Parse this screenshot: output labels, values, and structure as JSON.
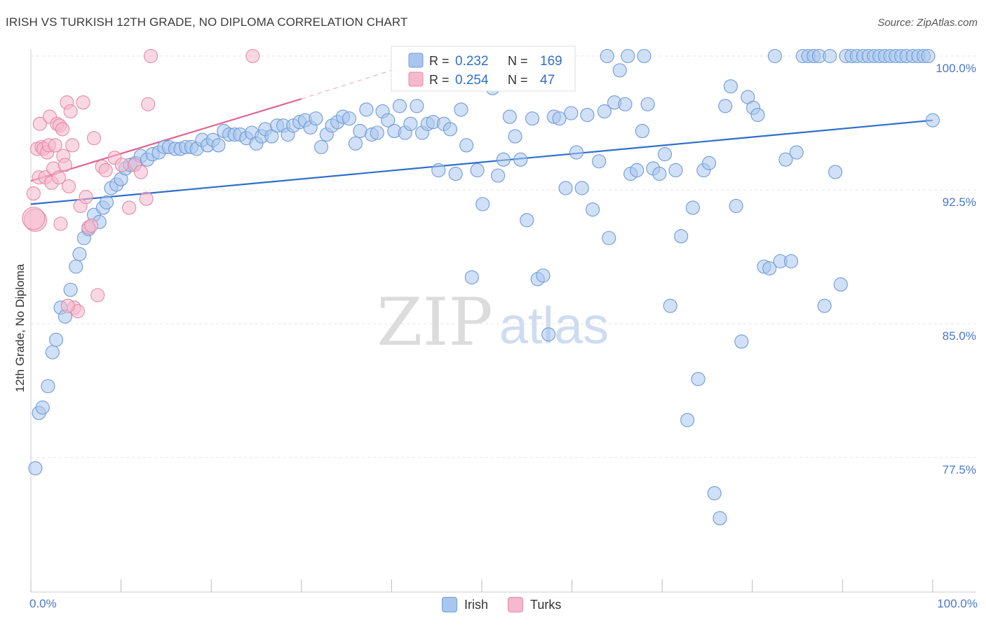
{
  "title": "IRISH VS TURKISH 12TH GRADE, NO DIPLOMA CORRELATION CHART",
  "source": "Source: ZipAtlas.com",
  "watermark": {
    "zip": "ZIP",
    "atlas": "atlas"
  },
  "chart_data": {
    "type": "scatter",
    "xlabel": "",
    "ylabel": "12th Grade, No Diploma",
    "xlim": [
      0,
      100
    ],
    "ylim": [
      70.5,
      101.5
    ],
    "x_tick_labels": {
      "left": "0.0%",
      "right": "100.0%"
    },
    "y_ticks": [
      {
        "value": 100.0,
        "label": "100.0%"
      },
      {
        "value": 92.5,
        "label": "92.5%"
      },
      {
        "value": 85.0,
        "label": "85.0%"
      },
      {
        "value": 77.5,
        "label": "77.5%"
      }
    ],
    "grid": true,
    "legend_stats": [
      {
        "series": "Irish",
        "r_label": "R =",
        "r": "0.232",
        "n_label": "N =",
        "n": "169",
        "color": "#a9c6ef"
      },
      {
        "series": "Turks",
        "r_label": "R =",
        "r": "0.254",
        "n_label": "N =",
        "n": "47",
        "color": "#f6b8cc"
      }
    ],
    "series": [
      {
        "name": "Irish",
        "color": "#a9c6ef",
        "stroke": "#6f9bd8",
        "line_color": "#2f6fca",
        "trend": {
          "x0": 0,
          "y0": 91.7,
          "x1": 100,
          "y1": 96.4
        },
        "points": [
          [
            0.5,
            76.9
          ],
          [
            0.9,
            80.0
          ],
          [
            1.3,
            80.3
          ],
          [
            1.9,
            81.5
          ],
          [
            2.4,
            83.4
          ],
          [
            2.8,
            84.1
          ],
          [
            3.3,
            85.9
          ],
          [
            3.8,
            85.4
          ],
          [
            4.4,
            86.9
          ],
          [
            5.0,
            88.2
          ],
          [
            5.4,
            88.9
          ],
          [
            5.9,
            89.8
          ],
          [
            6.4,
            90.3
          ],
          [
            7.0,
            91.1
          ],
          [
            7.6,
            90.7
          ],
          [
            8.0,
            91.5
          ],
          [
            8.4,
            91.8
          ],
          [
            8.9,
            92.6
          ],
          [
            9.5,
            92.8
          ],
          [
            10.0,
            93.1
          ],
          [
            10.5,
            93.7
          ],
          [
            11.0,
            93.9
          ],
          [
            11.6,
            94.0
          ],
          [
            12.2,
            94.4
          ],
          [
            12.9,
            94.2
          ],
          [
            13.5,
            94.5
          ],
          [
            14.2,
            94.6
          ],
          [
            14.8,
            94.9
          ],
          [
            15.3,
            94.9
          ],
          [
            16.0,
            94.8
          ],
          [
            16.6,
            94.8
          ],
          [
            17.2,
            94.9
          ],
          [
            17.8,
            94.9
          ],
          [
            18.4,
            94.8
          ],
          [
            19.0,
            95.3
          ],
          [
            19.6,
            95.0
          ],
          [
            20.2,
            95.3
          ],
          [
            20.8,
            95.0
          ],
          [
            21.4,
            95.8
          ],
          [
            22.0,
            95.6
          ],
          [
            22.6,
            95.6
          ],
          [
            23.2,
            95.6
          ],
          [
            23.9,
            95.4
          ],
          [
            24.5,
            95.7
          ],
          [
            25.0,
            95.1
          ],
          [
            25.6,
            95.5
          ],
          [
            26.0,
            95.9
          ],
          [
            26.7,
            95.5
          ],
          [
            27.3,
            96.1
          ],
          [
            28.0,
            96.1
          ],
          [
            28.5,
            95.6
          ],
          [
            29.1,
            96.1
          ],
          [
            29.8,
            96.3
          ],
          [
            30.4,
            96.4
          ],
          [
            31.0,
            96.0
          ],
          [
            31.6,
            96.5
          ],
          [
            32.2,
            94.9
          ],
          [
            32.8,
            95.6
          ],
          [
            33.4,
            96.1
          ],
          [
            34.0,
            96.3
          ],
          [
            34.6,
            96.6
          ],
          [
            35.3,
            96.5
          ],
          [
            36.0,
            95.1
          ],
          [
            36.5,
            95.8
          ],
          [
            37.2,
            97.0
          ],
          [
            37.8,
            95.6
          ],
          [
            38.4,
            95.7
          ],
          [
            39.0,
            96.9
          ],
          [
            39.6,
            96.4
          ],
          [
            40.3,
            95.8
          ],
          [
            40.9,
            97.2
          ],
          [
            41.5,
            95.7
          ],
          [
            42.1,
            96.2
          ],
          [
            42.8,
            97.2
          ],
          [
            43.4,
            95.7
          ],
          [
            44.0,
            96.2
          ],
          [
            44.6,
            96.3
          ],
          [
            45.2,
            93.6
          ],
          [
            45.8,
            96.2
          ],
          [
            46.5,
            95.9
          ],
          [
            47.1,
            93.4
          ],
          [
            47.7,
            97.0
          ],
          [
            48.3,
            95.0
          ],
          [
            48.9,
            87.6
          ],
          [
            49.5,
            93.6
          ],
          [
            50.1,
            91.7
          ],
          [
            51.2,
            98.2
          ],
          [
            51.8,
            93.3
          ],
          [
            52.4,
            94.2
          ],
          [
            53.1,
            96.6
          ],
          [
            53.7,
            95.5
          ],
          [
            54.3,
            94.2
          ],
          [
            55.0,
            90.8
          ],
          [
            55.6,
            96.5
          ],
          [
            56.2,
            87.5
          ],
          [
            56.8,
            87.7
          ],
          [
            57.4,
            84.4
          ],
          [
            58.0,
            96.6
          ],
          [
            58.6,
            96.5
          ],
          [
            59.3,
            92.6
          ],
          [
            59.9,
            96.8
          ],
          [
            60.5,
            94.6
          ],
          [
            61.1,
            92.6
          ],
          [
            61.7,
            96.7
          ],
          [
            62.3,
            91.4
          ],
          [
            63.0,
            94.1
          ],
          [
            63.6,
            96.9
          ],
          [
            64.1,
            89.8
          ],
          [
            64.7,
            97.4
          ],
          [
            65.3,
            99.2
          ],
          [
            65.9,
            97.3
          ],
          [
            66.5,
            93.4
          ],
          [
            67.2,
            93.6
          ],
          [
            67.8,
            95.8
          ],
          [
            68.4,
            97.3
          ],
          [
            69.0,
            93.7
          ],
          [
            69.7,
            93.4
          ],
          [
            70.3,
            94.5
          ],
          [
            70.9,
            86.0
          ],
          [
            71.5,
            93.6
          ],
          [
            72.1,
            89.9
          ],
          [
            72.8,
            79.6
          ],
          [
            73.4,
            91.5
          ],
          [
            74.0,
            81.9
          ],
          [
            74.6,
            93.6
          ],
          [
            75.2,
            94.0
          ],
          [
            75.8,
            75.5
          ],
          [
            76.4,
            74.1
          ],
          [
            77.0,
            97.2
          ],
          [
            77.6,
            98.3
          ],
          [
            78.2,
            91.6
          ],
          [
            78.8,
            84.0
          ],
          [
            79.5,
            97.7
          ],
          [
            80.1,
            97.1
          ],
          [
            80.6,
            96.7
          ],
          [
            81.3,
            88.2
          ],
          [
            81.9,
            88.1
          ],
          [
            82.5,
            100.0
          ],
          [
            83.1,
            88.5
          ],
          [
            83.7,
            94.2
          ],
          [
            84.3,
            88.5
          ],
          [
            84.9,
            94.6
          ],
          [
            85.6,
            100.0
          ],
          [
            86.2,
            100.0
          ],
          [
            86.8,
            100.0
          ],
          [
            87.4,
            100.0
          ],
          [
            88.0,
            86.0
          ],
          [
            88.6,
            100.0
          ],
          [
            89.2,
            93.5
          ],
          [
            89.8,
            87.2
          ],
          [
            90.4,
            100.0
          ],
          [
            91.0,
            100.0
          ],
          [
            91.6,
            100.0
          ],
          [
            92.3,
            100.0
          ],
          [
            92.9,
            100.0
          ],
          [
            93.5,
            100.0
          ],
          [
            94.1,
            100.0
          ],
          [
            94.7,
            100.0
          ],
          [
            95.3,
            100.0
          ],
          [
            95.9,
            100.0
          ],
          [
            96.5,
            100.0
          ],
          [
            97.1,
            100.0
          ],
          [
            97.8,
            100.0
          ],
          [
            98.4,
            100.0
          ],
          [
            99.0,
            100.0
          ],
          [
            99.5,
            100.0
          ],
          [
            100.0,
            96.4
          ],
          [
            63.9,
            100.0
          ],
          [
            66.2,
            100.0
          ],
          [
            68.0,
            100.0
          ]
        ]
      },
      {
        "name": "Turks",
        "color": "#f6b8cc",
        "stroke": "#e48aa8",
        "line_color": "#e0648f",
        "trend": {
          "x0": 0,
          "y0": 93.0,
          "x1": 30,
          "y1": 97.6
        },
        "trend_dashed_to": {
          "x": 45,
          "y": 100.0
        },
        "points": [
          [
            0.3,
            92.3
          ],
          [
            0.5,
            90.8
          ],
          [
            0.7,
            94.8
          ],
          [
            0.9,
            93.2
          ],
          [
            1.0,
            96.2
          ],
          [
            1.2,
            94.9
          ],
          [
            1.4,
            94.8
          ],
          [
            1.6,
            93.2
          ],
          [
            1.8,
            94.6
          ],
          [
            2.0,
            95.0
          ],
          [
            2.1,
            96.6
          ],
          [
            2.3,
            92.9
          ],
          [
            2.5,
            93.7
          ],
          [
            2.7,
            95.0
          ],
          [
            2.9,
            96.2
          ],
          [
            3.1,
            93.2
          ],
          [
            3.2,
            96.1
          ],
          [
            3.3,
            90.6
          ],
          [
            3.5,
            95.9
          ],
          [
            3.6,
            94.4
          ],
          [
            3.8,
            93.9
          ],
          [
            4.0,
            97.4
          ],
          [
            4.2,
            92.7
          ],
          [
            4.4,
            96.9
          ],
          [
            4.6,
            95.0
          ],
          [
            4.8,
            85.9
          ],
          [
            5.2,
            85.7
          ],
          [
            5.5,
            91.6
          ],
          [
            5.8,
            97.4
          ],
          [
            6.1,
            92.1
          ],
          [
            6.4,
            90.4
          ],
          [
            6.7,
            90.5
          ],
          [
            7.0,
            95.4
          ],
          [
            7.4,
            86.6
          ],
          [
            7.9,
            93.8
          ],
          [
            8.3,
            93.6
          ],
          [
            9.3,
            94.3
          ],
          [
            10.1,
            93.9
          ],
          [
            10.9,
            91.5
          ],
          [
            11.5,
            93.9
          ],
          [
            12.2,
            93.5
          ],
          [
            12.8,
            92.0
          ],
          [
            13.0,
            97.3
          ],
          [
            13.3,
            100.0
          ],
          [
            24.6,
            100.0
          ],
          [
            4.1,
            86.0
          ],
          [
            0.3,
            90.9
          ]
        ]
      }
    ]
  }
}
